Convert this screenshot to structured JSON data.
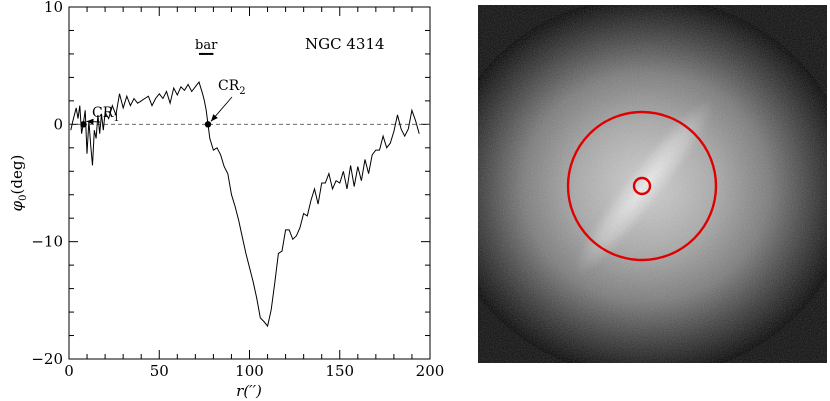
{
  "chart_data": {
    "type": "line",
    "ylabel_main": "φ",
    "ylabel_sub": "0",
    "ylabel_unit": "(deg)",
    "xlabel": "r(′′)",
    "xlim": [
      0,
      200
    ],
    "ylim": [
      -20,
      10
    ],
    "x_ticks": [
      "0",
      "50",
      "100",
      "150",
      "200"
    ],
    "y_ticks": [
      "10",
      "0",
      "−10",
      "−20"
    ],
    "annotation_galaxy": "NGC 4314",
    "bar_label": "bar",
    "bar_extent": [
      72,
      80
    ],
    "bar_y": 6.0,
    "cr1": {
      "label": "CR",
      "sub": "1",
      "x": 8,
      "y": 0
    },
    "cr2": {
      "label": "CR",
      "sub": "2",
      "x": 77,
      "y": 0
    },
    "reference_line_y": 0,
    "series": [
      {
        "x": [
          1,
          2,
          3,
          4,
          5,
          6,
          7,
          8,
          9,
          10,
          11,
          12,
          13,
          14,
          15,
          16,
          17,
          18,
          19,
          20,
          22,
          24,
          26,
          28,
          30,
          32,
          34,
          36,
          38,
          40,
          42,
          44,
          46,
          48,
          50,
          52,
          54,
          56,
          58,
          60,
          62,
          64,
          66,
          68,
          70,
          72,
          74,
          75,
          76,
          77,
          78,
          80,
          82,
          84,
          86,
          88,
          90,
          92,
          94,
          96,
          98,
          100,
          102,
          104,
          106,
          108,
          110,
          112,
          114,
          116,
          118,
          120,
          122,
          124,
          126,
          128,
          130,
          132,
          134,
          136,
          138,
          140,
          142,
          144,
          146,
          148,
          150,
          152,
          154,
          156,
          158,
          160,
          162,
          164,
          166,
          168,
          170,
          172,
          174,
          176,
          178,
          180,
          182,
          184,
          186,
          188,
          190,
          192,
          194
        ],
        "y": [
          -0.5,
          0.2,
          0.8,
          1.4,
          0.5,
          1.6,
          -0.8,
          0.1,
          1.2,
          -2.5,
          0.3,
          -1.8,
          -3.5,
          -0.5,
          -1.2,
          0.8,
          -0.8,
          0.9,
          -0.5,
          1.0,
          0.5,
          1.6,
          0.8,
          2.6,
          1.4,
          2.4,
          1.6,
          2.2,
          1.8,
          2.0,
          2.2,
          2.4,
          1.6,
          2.2,
          2.6,
          2.2,
          2.8,
          1.8,
          3.1,
          2.5,
          3.2,
          2.9,
          3.4,
          2.8,
          3.2,
          3.6,
          2.6,
          2.0,
          1.2,
          0.0,
          -1.2,
          -2.2,
          -2.0,
          -2.6,
          -3.6,
          -4.2,
          -6.0,
          -7.0,
          -8.2,
          -9.6,
          -11.0,
          -12.2,
          -13.4,
          -14.8,
          -16.5,
          -16.8,
          -17.2,
          -15.8,
          -13.5,
          -11.0,
          -10.8,
          -9.0,
          -9.0,
          -9.8,
          -9.5,
          -8.8,
          -7.6,
          -7.8,
          -6.5,
          -5.5,
          -6.8,
          -5.0,
          -5.0,
          -4.2,
          -5.5,
          -4.8,
          -5.0,
          -4.0,
          -5.5,
          -3.5,
          -5.3,
          -3.6,
          -4.8,
          -3.0,
          -4.2,
          -2.6,
          -2.2,
          -2.2,
          -1.0,
          -2.0,
          -1.6,
          -0.6,
          0.8,
          -0.4,
          -1.0,
          -0.4,
          1.2,
          0.3,
          -0.8
        ]
      }
    ]
  }
}
